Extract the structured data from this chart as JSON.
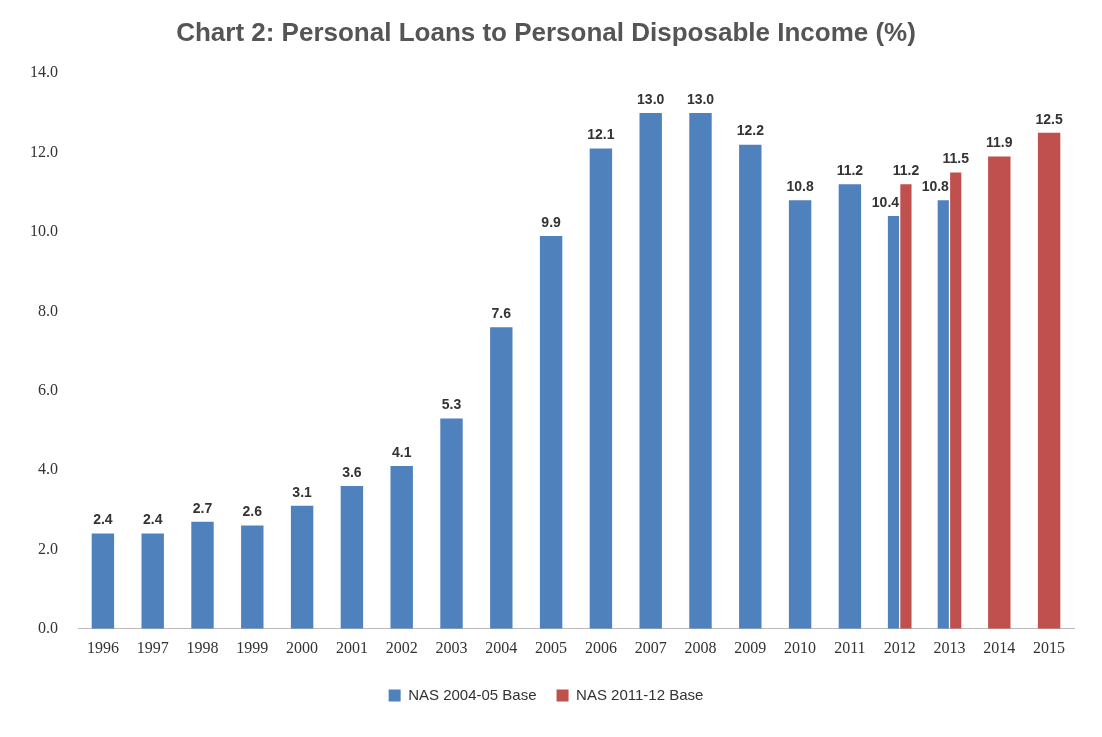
{
  "chart_data": {
    "type": "bar",
    "title": "Chart 2: Personal Loans to Personal Disposable Income (%)",
    "categories": [
      "1996",
      "1997",
      "1998",
      "1999",
      "2000",
      "2001",
      "2002",
      "2003",
      "2004",
      "2005",
      "2006",
      "2007",
      "2008",
      "2009",
      "2010",
      "2011",
      "2012",
      "2013",
      "2014",
      "2015"
    ],
    "series": [
      {
        "name": "NAS 2004-05 Base",
        "color": "#4f81bd",
        "values": [
          2.4,
          2.4,
          2.7,
          2.6,
          3.1,
          3.6,
          4.1,
          5.3,
          7.6,
          9.9,
          12.1,
          13.0,
          13.0,
          12.2,
          10.8,
          11.2,
          10.4,
          10.8,
          null,
          null
        ],
        "value_labels": [
          "2.4",
          "2.4",
          "2.7",
          "2.6",
          "3.1",
          "3.6",
          "4.1",
          "5.3",
          "7.6",
          "9.9",
          "12.1",
          "13.0",
          "13.0",
          "12.2",
          "10.8",
          "11.2",
          "10.4",
          "10.8",
          null,
          null
        ]
      },
      {
        "name": "NAS 2011-12 Base",
        "color": "#c0504d",
        "values": [
          null,
          null,
          null,
          null,
          null,
          null,
          null,
          null,
          null,
          null,
          null,
          null,
          null,
          null,
          null,
          null,
          11.2,
          11.5,
          11.9,
          12.5
        ],
        "value_labels": [
          null,
          null,
          null,
          null,
          null,
          null,
          null,
          null,
          null,
          null,
          null,
          null,
          null,
          null,
          null,
          null,
          "11.2",
          "11.5",
          "11.9",
          "12.5"
        ]
      }
    ],
    "ylim": [
      0,
      14
    ],
    "yticks": [
      {
        "value": 0,
        "label": "0.0"
      },
      {
        "value": 2,
        "label": "2.0"
      },
      {
        "value": 4,
        "label": "4.0"
      },
      {
        "value": 6,
        "label": "6.0"
      },
      {
        "value": 8,
        "label": "8.0"
      },
      {
        "value": 10,
        "label": "10.0"
      },
      {
        "value": 12,
        "label": "12.0"
      },
      {
        "value": 14,
        "label": "14.0"
      }
    ],
    "grid": false,
    "legend": "bottom"
  }
}
